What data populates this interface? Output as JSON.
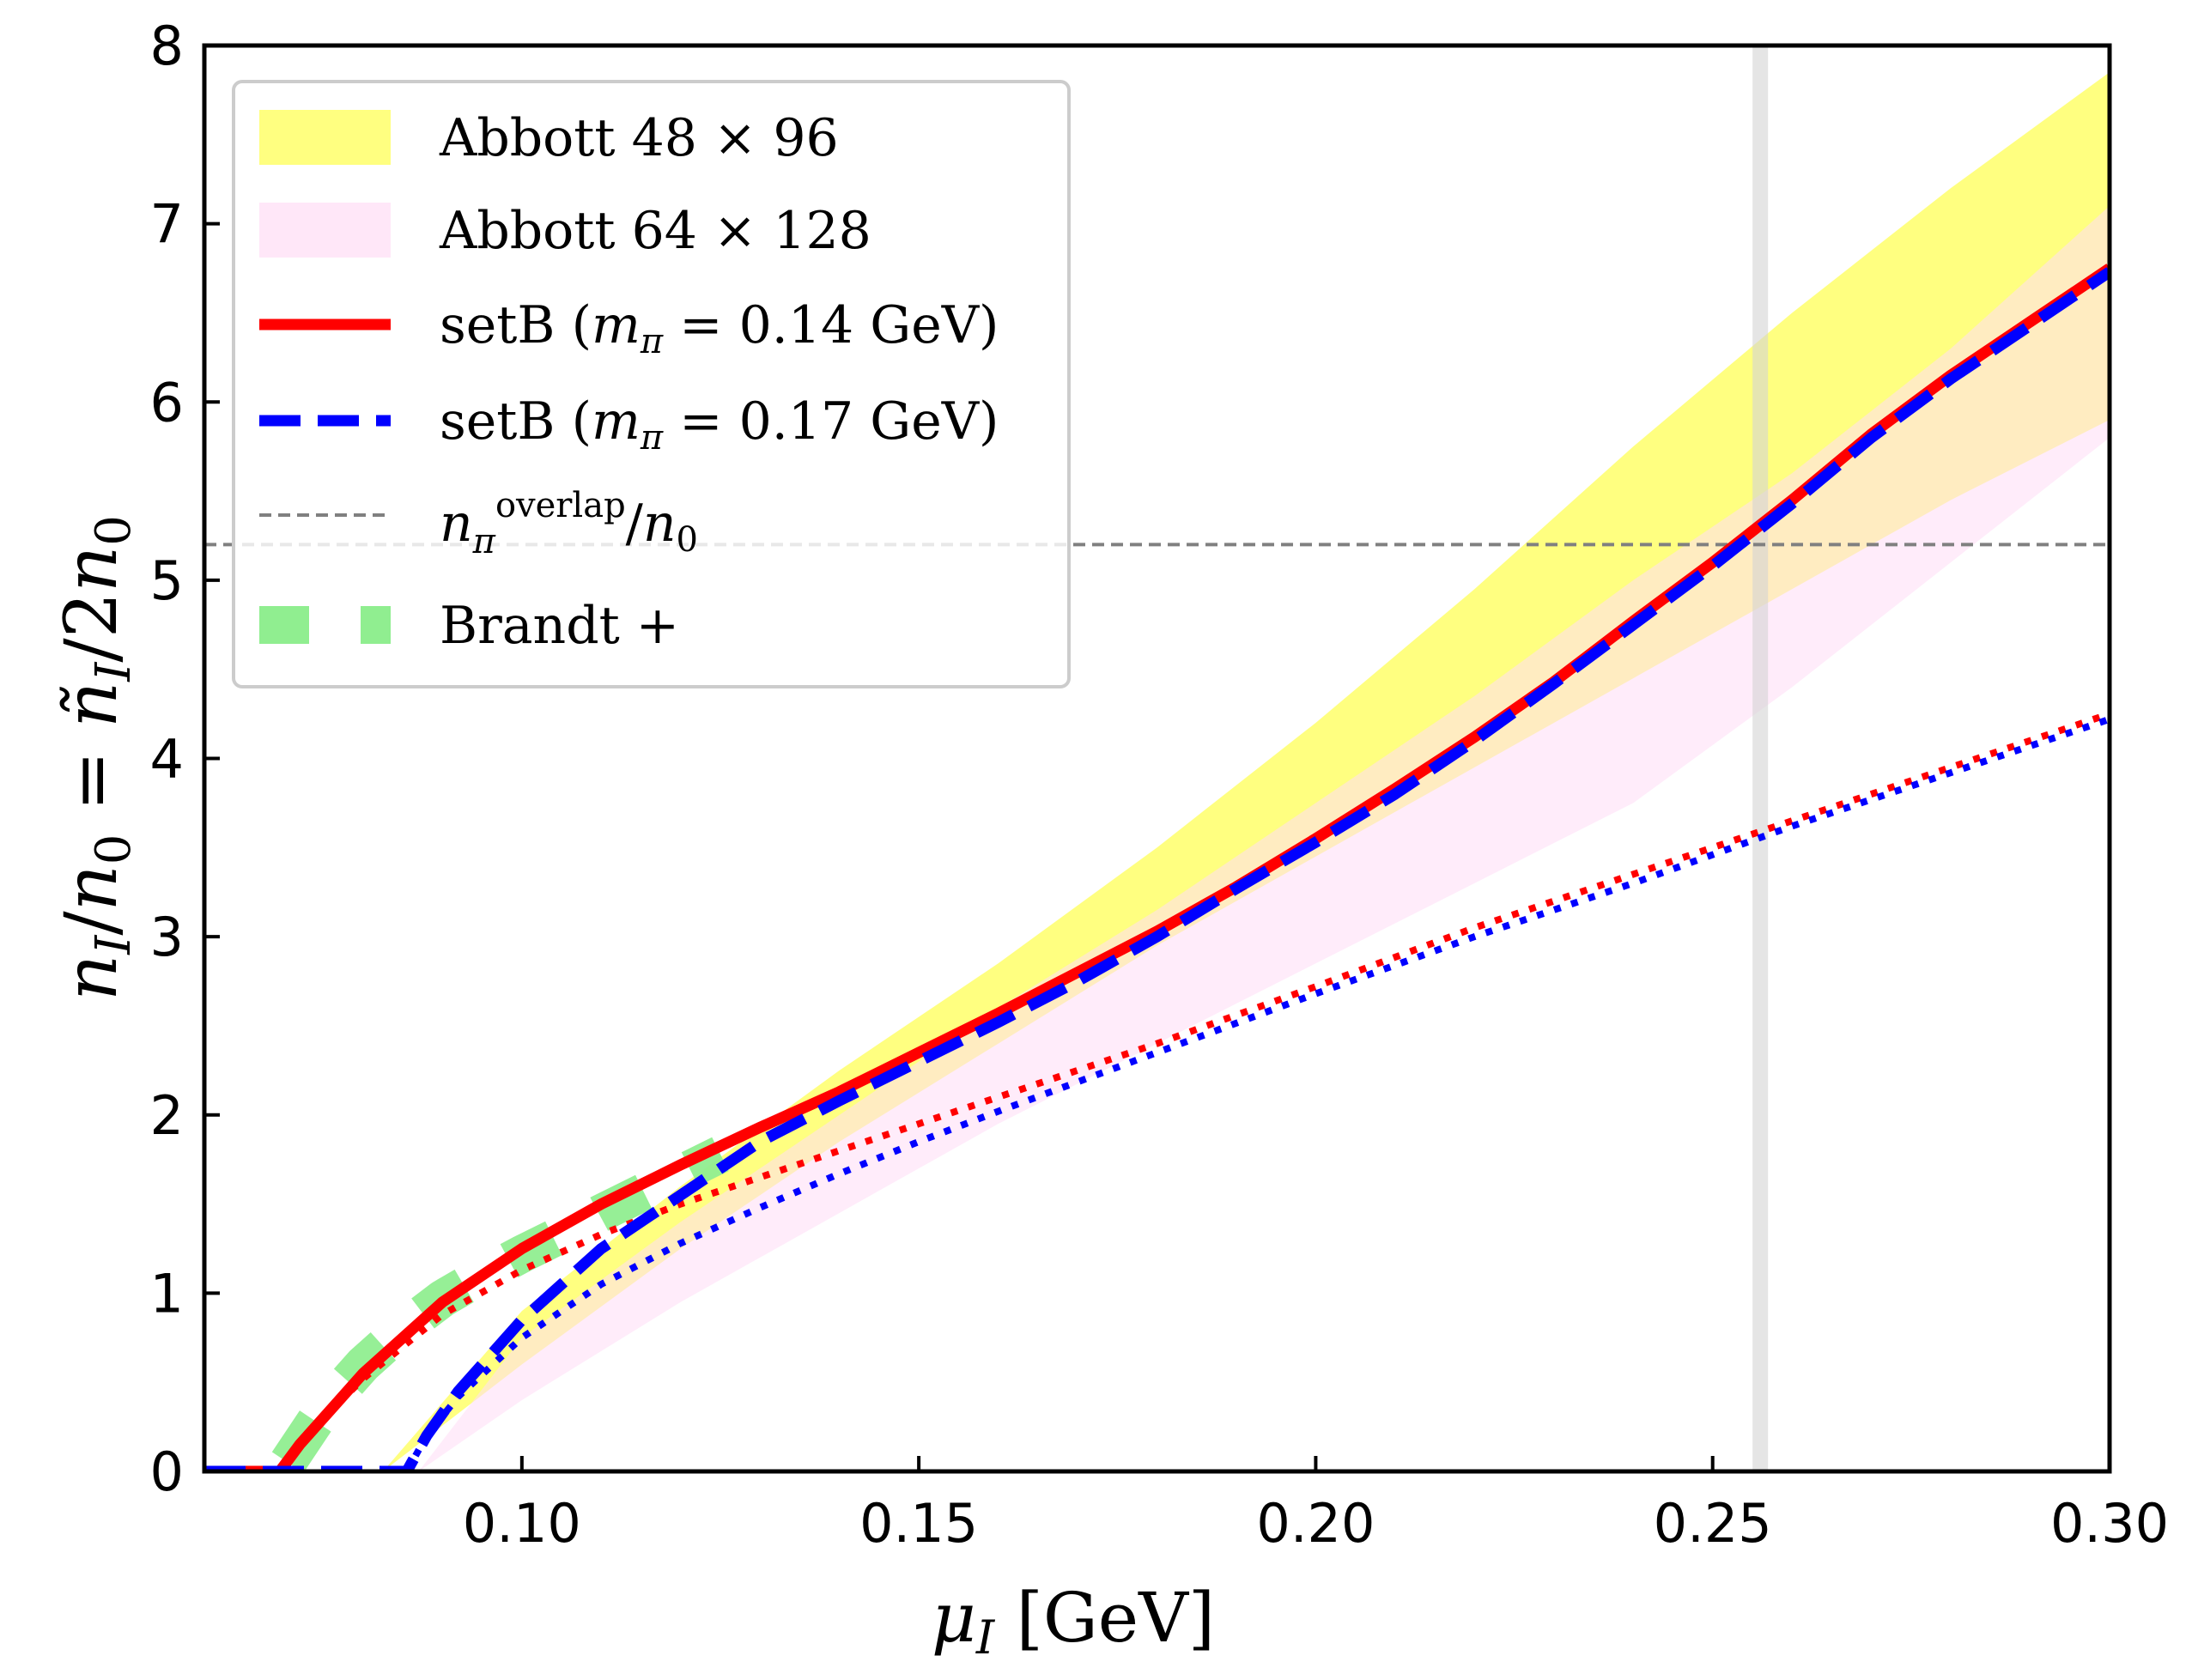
{
  "chart_data": {
    "type": "line",
    "xlabel": "μI [GeV]",
    "ylabel": "nI/n0 = ñI/2n0",
    "xlim": [
      0.06,
      0.3
    ],
    "ylim": [
      0,
      8
    ],
    "x_ticks": [
      "0.10",
      "0.15",
      "0.20",
      "0.25",
      "0.30"
    ],
    "x_tick_values": [
      0.1,
      0.15,
      0.2,
      0.25,
      0.3
    ],
    "y_ticks": [
      "0",
      "1",
      "2",
      "3",
      "4",
      "5",
      "6",
      "7",
      "8"
    ],
    "y_tick_values": [
      0,
      1,
      2,
      3,
      4,
      5,
      6,
      7,
      8
    ],
    "reference_lines": {
      "horizontal_y": 5.2,
      "vertical_x": 0.256
    },
    "bands": [
      {
        "name": "Abbott 48×96",
        "color": "#ffff80",
        "x": [
          0.0825,
          0.1,
          0.12,
          0.14,
          0.16,
          0.18,
          0.2,
          0.22,
          0.24,
          0.26,
          0.28,
          0.3
        ],
        "lower": [
          0.0,
          0.6,
          1.25,
          1.85,
          2.4,
          2.95,
          3.45,
          3.95,
          4.45,
          4.95,
          5.45,
          5.9
        ],
        "upper": [
          0.0,
          0.9,
          1.6,
          2.25,
          2.85,
          3.5,
          4.2,
          4.95,
          5.75,
          6.5,
          7.2,
          7.85
        ]
      },
      {
        "name": "Abbott 64×128",
        "color": "#ffddf5",
        "x": [
          0.087,
          0.1,
          0.12,
          0.14,
          0.16,
          0.18,
          0.2,
          0.22,
          0.24,
          0.26,
          0.28,
          0.3
        ],
        "lower": [
          0.0,
          0.4,
          0.95,
          1.45,
          1.95,
          2.4,
          2.85,
          3.3,
          3.75,
          4.4,
          5.1,
          5.8
        ],
        "upper": [
          0.0,
          0.75,
          1.4,
          2.0,
          2.6,
          3.15,
          3.75,
          4.35,
          5.0,
          5.6,
          6.3,
          7.1
        ]
      }
    ],
    "series": [
      {
        "name": "setB (mπ = 0.14 GeV)",
        "color": "#ff0000",
        "style": "solid",
        "x": [
          0.06,
          0.0695,
          0.072,
          0.075,
          0.08,
          0.085,
          0.09,
          0.1,
          0.11,
          0.12,
          0.13,
          0.14,
          0.15,
          0.16,
          0.17,
          0.18,
          0.19,
          0.2,
          0.21,
          0.22,
          0.23,
          0.24,
          0.25,
          0.26,
          0.27,
          0.28,
          0.29,
          0.3
        ],
        "y": [
          0,
          0,
          0.15,
          0.3,
          0.55,
          0.75,
          0.95,
          1.25,
          1.5,
          1.72,
          1.93,
          2.13,
          2.35,
          2.57,
          2.8,
          3.03,
          3.28,
          3.55,
          3.83,
          4.12,
          4.43,
          4.77,
          5.1,
          5.45,
          5.82,
          6.15,
          6.45,
          6.75
        ]
      },
      {
        "name": "setB (mπ = 0.17 GeV)",
        "color": "#0000ff",
        "style": "dashed",
        "x": [
          0.06,
          0.0855,
          0.088,
          0.092,
          0.1,
          0.11,
          0.12,
          0.13,
          0.14,
          0.15,
          0.16,
          0.17,
          0.18,
          0.19,
          0.2,
          0.21,
          0.22,
          0.23,
          0.24,
          0.25,
          0.26,
          0.27,
          0.28,
          0.29,
          0.3
        ],
        "y": [
          0,
          0,
          0.2,
          0.45,
          0.85,
          1.25,
          1.55,
          1.85,
          2.08,
          2.3,
          2.52,
          2.75,
          3.0,
          3.27,
          3.53,
          3.8,
          4.1,
          4.42,
          4.75,
          5.08,
          5.43,
          5.8,
          6.13,
          6.43,
          6.73
        ]
      },
      {
        "name": "",
        "color": "#ff0000",
        "style": "dotted",
        "x": [
          0.0695,
          0.072,
          0.075,
          0.08,
          0.085,
          0.09,
          0.1,
          0.11,
          0.12,
          0.13,
          0.14,
          0.15,
          0.16,
          0.18,
          0.2,
          0.22,
          0.24,
          0.26,
          0.28,
          0.3
        ],
        "y": [
          0,
          0.15,
          0.3,
          0.52,
          0.7,
          0.88,
          1.13,
          1.33,
          1.5,
          1.65,
          1.8,
          1.95,
          2.1,
          2.4,
          2.72,
          3.05,
          3.35,
          3.65,
          3.95,
          4.25
        ]
      },
      {
        "name": "",
        "color": "#0000ff",
        "style": "dotted",
        "x": [
          0.0855,
          0.088,
          0.092,
          0.1,
          0.11,
          0.12,
          0.13,
          0.14,
          0.15,
          0.16,
          0.18,
          0.2,
          0.22,
          0.24,
          0.26,
          0.28,
          0.3
        ],
        "y": [
          0,
          0.2,
          0.42,
          0.75,
          1.05,
          1.28,
          1.48,
          1.67,
          1.85,
          2.02,
          2.35,
          2.68,
          3.0,
          3.3,
          3.62,
          3.92,
          4.22
        ]
      },
      {
        "name": "Brandt+",
        "color": "#90ee90",
        "style": "thick-dashed",
        "x": [
          0.0705,
          0.075,
          0.08,
          0.085,
          0.09,
          0.095,
          0.1,
          0.105,
          0.11,
          0.115,
          0.12,
          0.125
        ],
        "y": [
          0.05,
          0.35,
          0.6,
          0.8,
          0.97,
          1.1,
          1.22,
          1.33,
          1.45,
          1.56,
          1.67,
          1.78
        ]
      }
    ],
    "legend": {
      "position": "upper-left",
      "entries": [
        {
          "label": "Abbott 48 × 96",
          "kind": "band",
          "color": "#ffff80"
        },
        {
          "label": "Abbott 64 × 128",
          "kind": "band",
          "color": "#ffddf5"
        },
        {
          "label": "setB (mπ = 0.14 GeV)",
          "kind": "solid",
          "color": "#ff0000"
        },
        {
          "label": "setB (mπ = 0.17 GeV)",
          "kind": "dashed",
          "color": "#0000ff"
        },
        {
          "label": "nπ^overlap/n0",
          "kind": "thin-dashed",
          "color": "#808080"
        },
        {
          "label": "Brandt +",
          "kind": "thick-dashed",
          "color": "#90ee90"
        }
      ]
    }
  }
}
